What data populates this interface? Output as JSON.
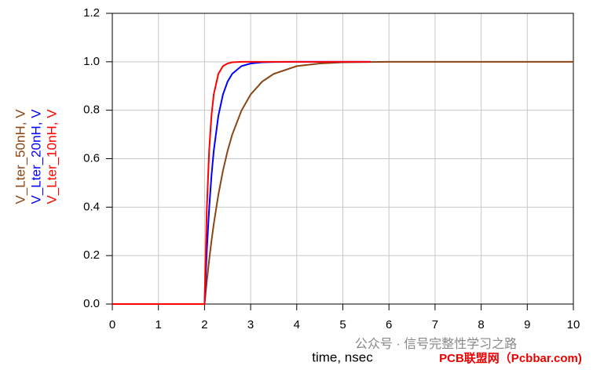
{
  "chart_data": {
    "type": "line",
    "x_label": "time, nsec",
    "x": [
      0,
      2,
      2.05,
      2.1,
      2.15,
      2.2,
      2.3,
      2.4,
      2.5,
      2.6,
      2.8,
      3,
      3.25,
      3.5,
      4,
      4.5,
      5,
      5.6,
      6,
      7,
      8,
      9,
      10
    ],
    "series": [
      {
        "name": "V_Lter_50nH, V",
        "color": "#8b4513",
        "values": [
          0,
          0,
          0.095,
          0.181,
          0.259,
          0.33,
          0.451,
          0.551,
          0.632,
          0.699,
          0.798,
          0.865,
          0.918,
          0.95,
          0.982,
          0.993,
          0.998,
          0.999,
          1,
          1,
          1,
          1,
          1
        ]
      },
      {
        "name": "V_Lter_20nH, V",
        "color": "#0000ff",
        "values": [
          0,
          0,
          0.221,
          0.393,
          0.528,
          0.632,
          0.777,
          0.865,
          0.918,
          0.95,
          0.982,
          0.993,
          0.998,
          0.999,
          1,
          1,
          1,
          1,
          null,
          null,
          null,
          null,
          null
        ]
      },
      {
        "name": "V_Lter_10nH, V",
        "color": "#ff0000",
        "values": [
          0,
          0,
          0.393,
          0.632,
          0.777,
          0.865,
          0.95,
          0.982,
          0.993,
          0.998,
          1,
          1,
          1,
          1,
          1,
          1,
          1,
          1,
          null,
          null,
          null,
          null,
          null
        ]
      }
    ],
    "xlim": [
      0,
      10
    ],
    "xticks": [
      0,
      1,
      2,
      3,
      4,
      5,
      6,
      7,
      8,
      9,
      10
    ],
    "ylim": [
      0,
      1.2
    ],
    "yticks": [
      {
        "value": 0,
        "label": "0.0"
      },
      0.2,
      0.4,
      0.6,
      0.8,
      {
        "value": 1,
        "label": "1.0"
      },
      1.2
    ],
    "grid": true,
    "watermark": [
      "公众号 · 信号完整性学习之路",
      "PCB联盟网（Pcbbar.com)"
    ]
  }
}
